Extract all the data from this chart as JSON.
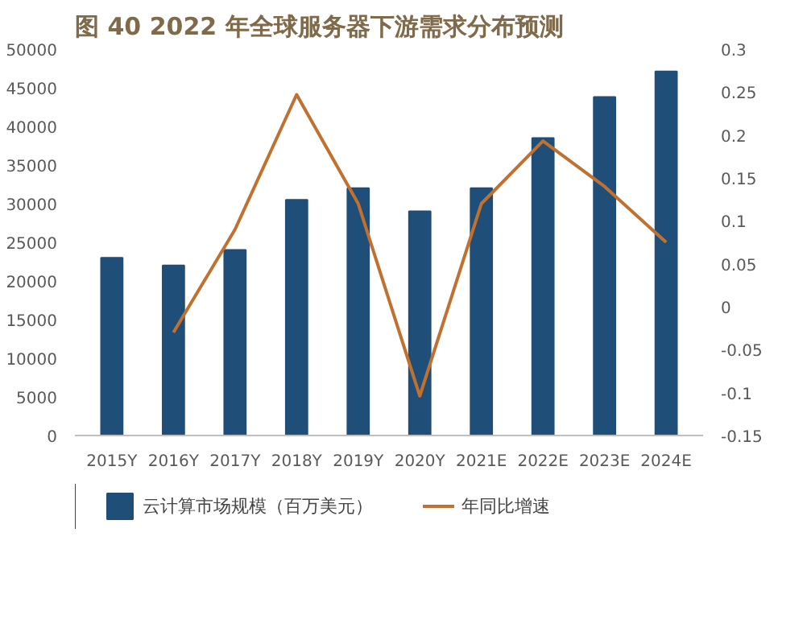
{
  "chart_data": {
    "type": "bar",
    "title": "图 40   2022 年全球服务器下游需求分布预测",
    "categories": [
      "2015Y",
      "2016Y",
      "2017Y",
      "2018Y",
      "2019Y",
      "2020Y",
      "2021E",
      "2022E",
      "2023E",
      "2024E"
    ],
    "series": [
      {
        "name": "云计算市场规模（百万美元）",
        "color": "#1f4e79",
        "values": [
          23000,
          22000,
          24000,
          30500,
          32000,
          29000,
          32000,
          38500,
          43800,
          47100
        ]
      },
      {
        "name": "年同比增速",
        "type": "line",
        "axis": "y2",
        "color": "#c0712f",
        "values": [
          null,
          -0.03,
          0.09,
          0.247,
          0.12,
          -0.104,
          0.12,
          0.193,
          0.14,
          0.075
        ]
      }
    ],
    "ylim": [
      0,
      50000
    ],
    "yticks": [
      0,
      5000,
      10000,
      15000,
      20000,
      25000,
      30000,
      35000,
      40000,
      45000,
      50000
    ],
    "y2lim": [
      -0.15,
      0.3
    ],
    "y2ticks": [
      {
        "value": -0.15,
        "label": "-0.15"
      },
      {
        "value": -0.1,
        "label": "-0.1"
      },
      {
        "value": -0.05,
        "label": "-0.05"
      },
      {
        "value": 0,
        "label": "0"
      },
      {
        "value": 0.05,
        "label": "0.05"
      },
      {
        "value": 0.1,
        "label": "0.1"
      },
      {
        "value": 0.15,
        "label": "0.15"
      },
      {
        "value": 0.2,
        "label": "0.2"
      },
      {
        "value": 0.25,
        "label": "0.25"
      },
      {
        "value": 0.3,
        "label": "0.3"
      }
    ],
    "grid": false,
    "legend": "bottom",
    "line_style": "solid",
    "marker": "none"
  }
}
